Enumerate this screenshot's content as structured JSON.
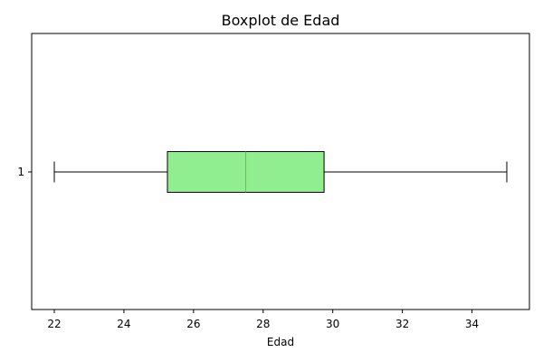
{
  "chart_data": {
    "type": "boxplot",
    "title": "Boxplot de Edad",
    "xlabel": "Edad",
    "ylabel": "",
    "orientation": "horizontal",
    "xlim": [
      21.35,
      35.65
    ],
    "x_ticks": [
      22,
      24,
      26,
      28,
      30,
      32,
      34
    ],
    "y_ticks": [
      "1"
    ],
    "boxes": [
      {
        "label": "1",
        "whisker_low": 22,
        "q1": 25.25,
        "median": 27.5,
        "q3": 29.75,
        "whisker_high": 35
      }
    ],
    "grid": false,
    "box_fill_color": "#90ee90",
    "median_color": "#ff7f0e",
    "line_color": "#000000"
  }
}
